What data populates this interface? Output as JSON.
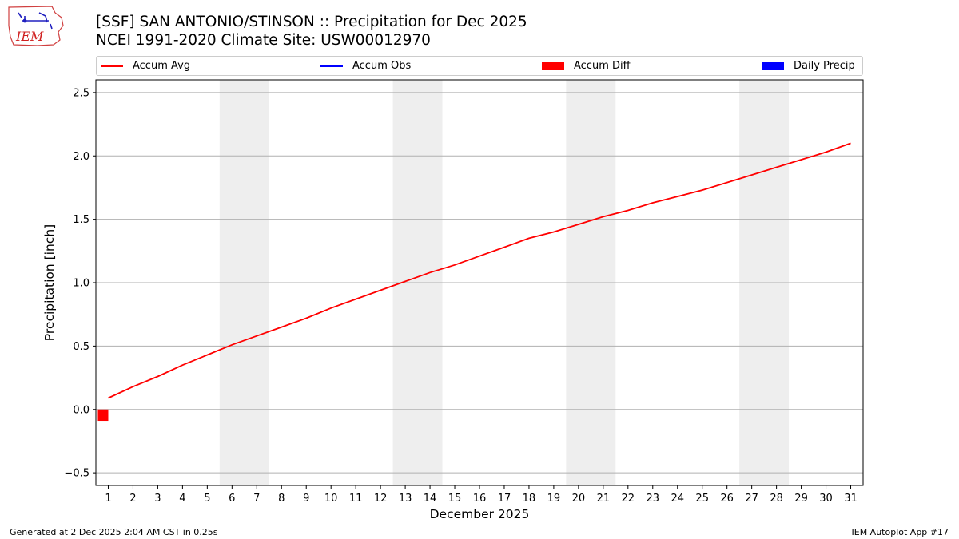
{
  "header": {
    "title_line1": "[SSF] SAN ANTONIO/STINSON :: Precipitation for Dec 2025",
    "title_line2": "NCEI 1991-2020 Climate Site: USW00012970",
    "logo_text": "IEM"
  },
  "footer": {
    "left": "Generated at 2 Dec 2025 2:04 AM CST in 0.25s",
    "right": "IEM Autoplot App #17"
  },
  "colors": {
    "accum_avg": "#ff0000",
    "accum_obs": "#0000ff",
    "accum_diff": "#ff0000",
    "daily_precip": "#0000ff",
    "weekend_shade": "#eeeeee",
    "grid": "#b0b0b0"
  },
  "chart_data": {
    "type": "line",
    "xlabel": "December 2025",
    "ylabel": "Precipitation [inch]",
    "xlim": [
      0.5,
      31.5
    ],
    "ylim": [
      -0.6,
      2.6
    ],
    "x_ticks": [
      1,
      2,
      3,
      4,
      5,
      6,
      7,
      8,
      9,
      10,
      11,
      12,
      13,
      14,
      15,
      16,
      17,
      18,
      19,
      20,
      21,
      22,
      23,
      24,
      25,
      26,
      27,
      28,
      29,
      30,
      31
    ],
    "y_ticks": [
      -0.5,
      0.0,
      0.5,
      1.0,
      1.5,
      2.0,
      2.5
    ],
    "y_tick_labels": [
      "−0.5",
      "0.0",
      "0.5",
      "1.0",
      "1.5",
      "2.0",
      "2.5"
    ],
    "grid": "horizontal",
    "legend": {
      "placement": "top",
      "entries": [
        "Accum Avg",
        "Accum Obs",
        "Accum Diff",
        "Daily Precip"
      ]
    },
    "weekend_shading": [
      [
        6,
        7
      ],
      [
        13,
        14
      ],
      [
        20,
        21
      ],
      [
        27,
        28
      ]
    ],
    "series": [
      {
        "name": "Accum Avg",
        "kind": "line",
        "x": [
          1,
          2,
          3,
          4,
          5,
          6,
          7,
          8,
          9,
          10,
          11,
          12,
          13,
          14,
          15,
          16,
          17,
          18,
          19,
          20,
          21,
          22,
          23,
          24,
          25,
          26,
          27,
          28,
          29,
          30,
          31
        ],
        "values": [
          0.09,
          0.18,
          0.26,
          0.35,
          0.43,
          0.51,
          0.58,
          0.65,
          0.72,
          0.8,
          0.87,
          0.94,
          1.01,
          1.08,
          1.14,
          1.21,
          1.28,
          1.35,
          1.4,
          1.46,
          1.52,
          1.57,
          1.63,
          1.68,
          1.73,
          1.79,
          1.85,
          1.91,
          1.97,
          2.03,
          2.1
        ]
      },
      {
        "name": "Accum Obs",
        "kind": "line",
        "x": [],
        "values": []
      },
      {
        "name": "Accum Diff",
        "kind": "bar",
        "x": [
          1
        ],
        "values": [
          -0.09
        ]
      },
      {
        "name": "Daily Precip",
        "kind": "bar",
        "x": [],
        "values": []
      }
    ]
  }
}
